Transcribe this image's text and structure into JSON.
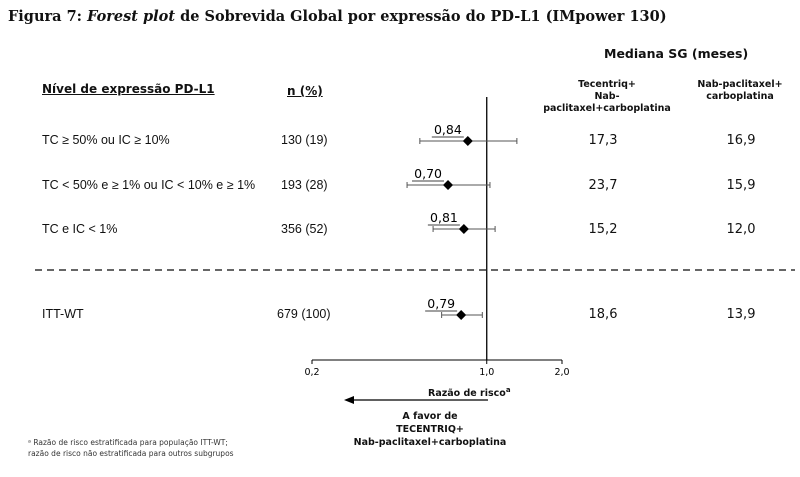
{
  "figure": {
    "title_prefix": "Figura 7: ",
    "title_italic": "Forest plot",
    "title_rest": " de Sobrevida Global por expressão do PD-L1 (IMpower 130)"
  },
  "headers": {
    "median": "Mediana SG (meses)",
    "level": "Nível de expressão PD-L1",
    "n": "n (%)",
    "col1_line1": "Tecentriq+",
    "col1_line2": "Nab-paclitaxel+carboplatina",
    "col2_line1": "Nab-paclitaxel+",
    "col2_line2": "carboplatina"
  },
  "rows": [
    {
      "label": "TC ≥ 50% ou IC ≥ 10%",
      "n": "130 (19)",
      "hr_label": "0,84",
      "med1": "17,3",
      "med2": "16,9"
    },
    {
      "label": "TC < 50% e ≥ 1% ou IC < 10% e ≥ 1%",
      "n": "193 (28)",
      "hr_label": "0,70",
      "med1": "23,7",
      "med2": "15,9"
    },
    {
      "label": "TC e IC < 1%",
      "n": "356 (52)",
      "hr_label": "0,81",
      "med1": "15,2",
      "med2": "12,0"
    },
    {
      "label": "ITT-WT",
      "n": "679 (100)",
      "hr_label": "0,79",
      "med1": "18,6",
      "med2": "13,9"
    }
  ],
  "axis": {
    "tick_labels": [
      "0,2",
      "1,0",
      "2,0"
    ],
    "xlabel": "Razão de risco",
    "xlabel_sup": "a"
  },
  "favor": {
    "line1": "A favor de",
    "line2": "TECENTRIQ+",
    "line3": "Nab-paclitaxel+carboplatina"
  },
  "footnote": {
    "line1": "ᵃ Razão de risco estratificada para população ITT-WT;",
    "line2": "razão de risco não estratificada para outros subgrupos"
  },
  "colors": {
    "marker": "#000000",
    "ci": "#555555",
    "axis": "#000000"
  },
  "chart_data": {
    "type": "scatter",
    "subtype": "forest",
    "xscale": "log",
    "xlim": [
      0.2,
      2.0
    ],
    "xticks": [
      0.2,
      1.0,
      2.0
    ],
    "reference_line": 1.0,
    "xlabel": "Razão de risco",
    "categories": [
      "TC ≥ 50% ou IC ≥ 10%",
      "TC < 50% e ≥ 1% ou IC < 10% e ≥ 1%",
      "TC e IC < 1%",
      "ITT-WT"
    ],
    "hr": [
      0.84,
      0.7,
      0.81,
      0.79
    ],
    "ci_low": [
      0.54,
      0.48,
      0.61,
      0.66
    ],
    "ci_high": [
      1.32,
      1.03,
      1.08,
      0.96
    ],
    "grid": false
  }
}
